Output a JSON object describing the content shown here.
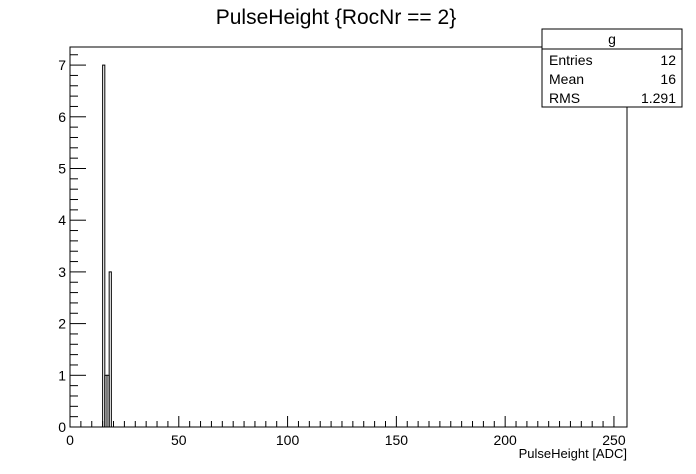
{
  "chart_data": {
    "type": "bar",
    "title": "PulseHeight {RocNr == 2}",
    "xlabel": "PulseHeight [ADC]",
    "ylabel": "",
    "xlim": [
      0,
      256
    ],
    "ylim": [
      0,
      7.35
    ],
    "xticks": [
      "0",
      "50",
      "100",
      "150",
      "200",
      "250"
    ],
    "yticks": [
      "0",
      "1",
      "2",
      "3",
      "4",
      "5",
      "6",
      "7"
    ],
    "bins": [
      {
        "x0": 15,
        "x1": 16,
        "value": 7
      },
      {
        "x0": 16,
        "x1": 17,
        "value": 1
      },
      {
        "x0": 17,
        "x1": 18,
        "value": 1
      },
      {
        "x0": 18,
        "x1": 19,
        "value": 3
      }
    ],
    "grid": false,
    "stats_box": {
      "name": "g",
      "rows": [
        {
          "label": "Entries",
          "value": "12"
        },
        {
          "label": "Mean",
          "value": "16"
        },
        {
          "label": "RMS",
          "value": "1.291"
        }
      ]
    }
  }
}
